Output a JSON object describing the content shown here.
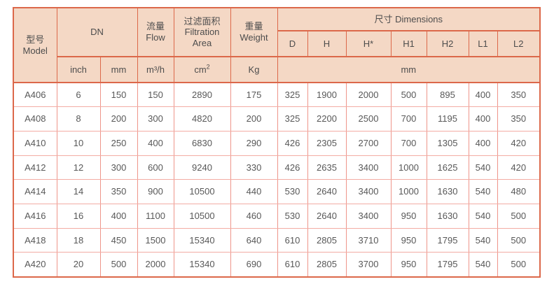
{
  "colors": {
    "header_bg": "#f4d8c5",
    "border_strong": "#dc684a",
    "border_light_h": "#f3aca4",
    "border_light_v": "#ee958a",
    "text_header": "#4d4d4d",
    "text_body": "#585858",
    "page_bg": "#ffffff"
  },
  "table": {
    "header": {
      "model_zh": "型号",
      "model_en": "Model",
      "dn": "DN",
      "flow_zh": "流量",
      "flow_en": "Flow",
      "area_zh": "过滤面积",
      "area_en1": "Filtration",
      "area_en2": "Area",
      "weight_zh": "重量",
      "weight_en": "Weight",
      "dimensions": "尺寸 Dimensions",
      "dim_cols": [
        "D",
        "H",
        "H*",
        "H1",
        "H2",
        "L1",
        "L2"
      ],
      "unit_inch": "inch",
      "unit_mm": "mm",
      "unit_flow": "m³/h",
      "unit_area_base": "cm",
      "unit_area_sup": "2",
      "unit_weight": "Kg",
      "unit_dim": "mm"
    },
    "rows": [
      {
        "model": "A406",
        "inch": "6",
        "mm": "150",
        "flow": "150",
        "area": "2890",
        "weight": "175",
        "dims": [
          "325",
          "1900",
          "2000",
          "500",
          "895",
          "400",
          "350"
        ]
      },
      {
        "model": "A408",
        "inch": "8",
        "mm": "200",
        "flow": "300",
        "area": "4820",
        "weight": "200",
        "dims": [
          "325",
          "2200",
          "2500",
          "700",
          "1195",
          "400",
          "350"
        ]
      },
      {
        "model": "A410",
        "inch": "10",
        "mm": "250",
        "flow": "400",
        "area": "6830",
        "weight": "290",
        "dims": [
          "426",
          "2305",
          "2700",
          "700",
          "1305",
          "400",
          "420"
        ]
      },
      {
        "model": "A412",
        "inch": "12",
        "mm": "300",
        "flow": "600",
        "area": "9240",
        "weight": "330",
        "dims": [
          "426",
          "2635",
          "3400",
          "1000",
          "1625",
          "540",
          "420"
        ]
      },
      {
        "model": "A414",
        "inch": "14",
        "mm": "350",
        "flow": "900",
        "area": "10500",
        "weight": "440",
        "dims": [
          "530",
          "2640",
          "3400",
          "1000",
          "1630",
          "540",
          "480"
        ]
      },
      {
        "model": "A416",
        "inch": "16",
        "mm": "400",
        "flow": "1100",
        "area": "10500",
        "weight": "460",
        "dims": [
          "530",
          "2640",
          "3400",
          "950",
          "1630",
          "540",
          "500"
        ]
      },
      {
        "model": "A418",
        "inch": "18",
        "mm": "450",
        "flow": "1500",
        "area": "15340",
        "weight": "640",
        "dims": [
          "610",
          "2805",
          "3710",
          "950",
          "1795",
          "540",
          "500"
        ]
      },
      {
        "model": "A420",
        "inch": "20",
        "mm": "500",
        "flow": "2000",
        "area": "15340",
        "weight": "690",
        "dims": [
          "610",
          "2805",
          "3700",
          "950",
          "1795",
          "540",
          "500"
        ]
      }
    ]
  }
}
